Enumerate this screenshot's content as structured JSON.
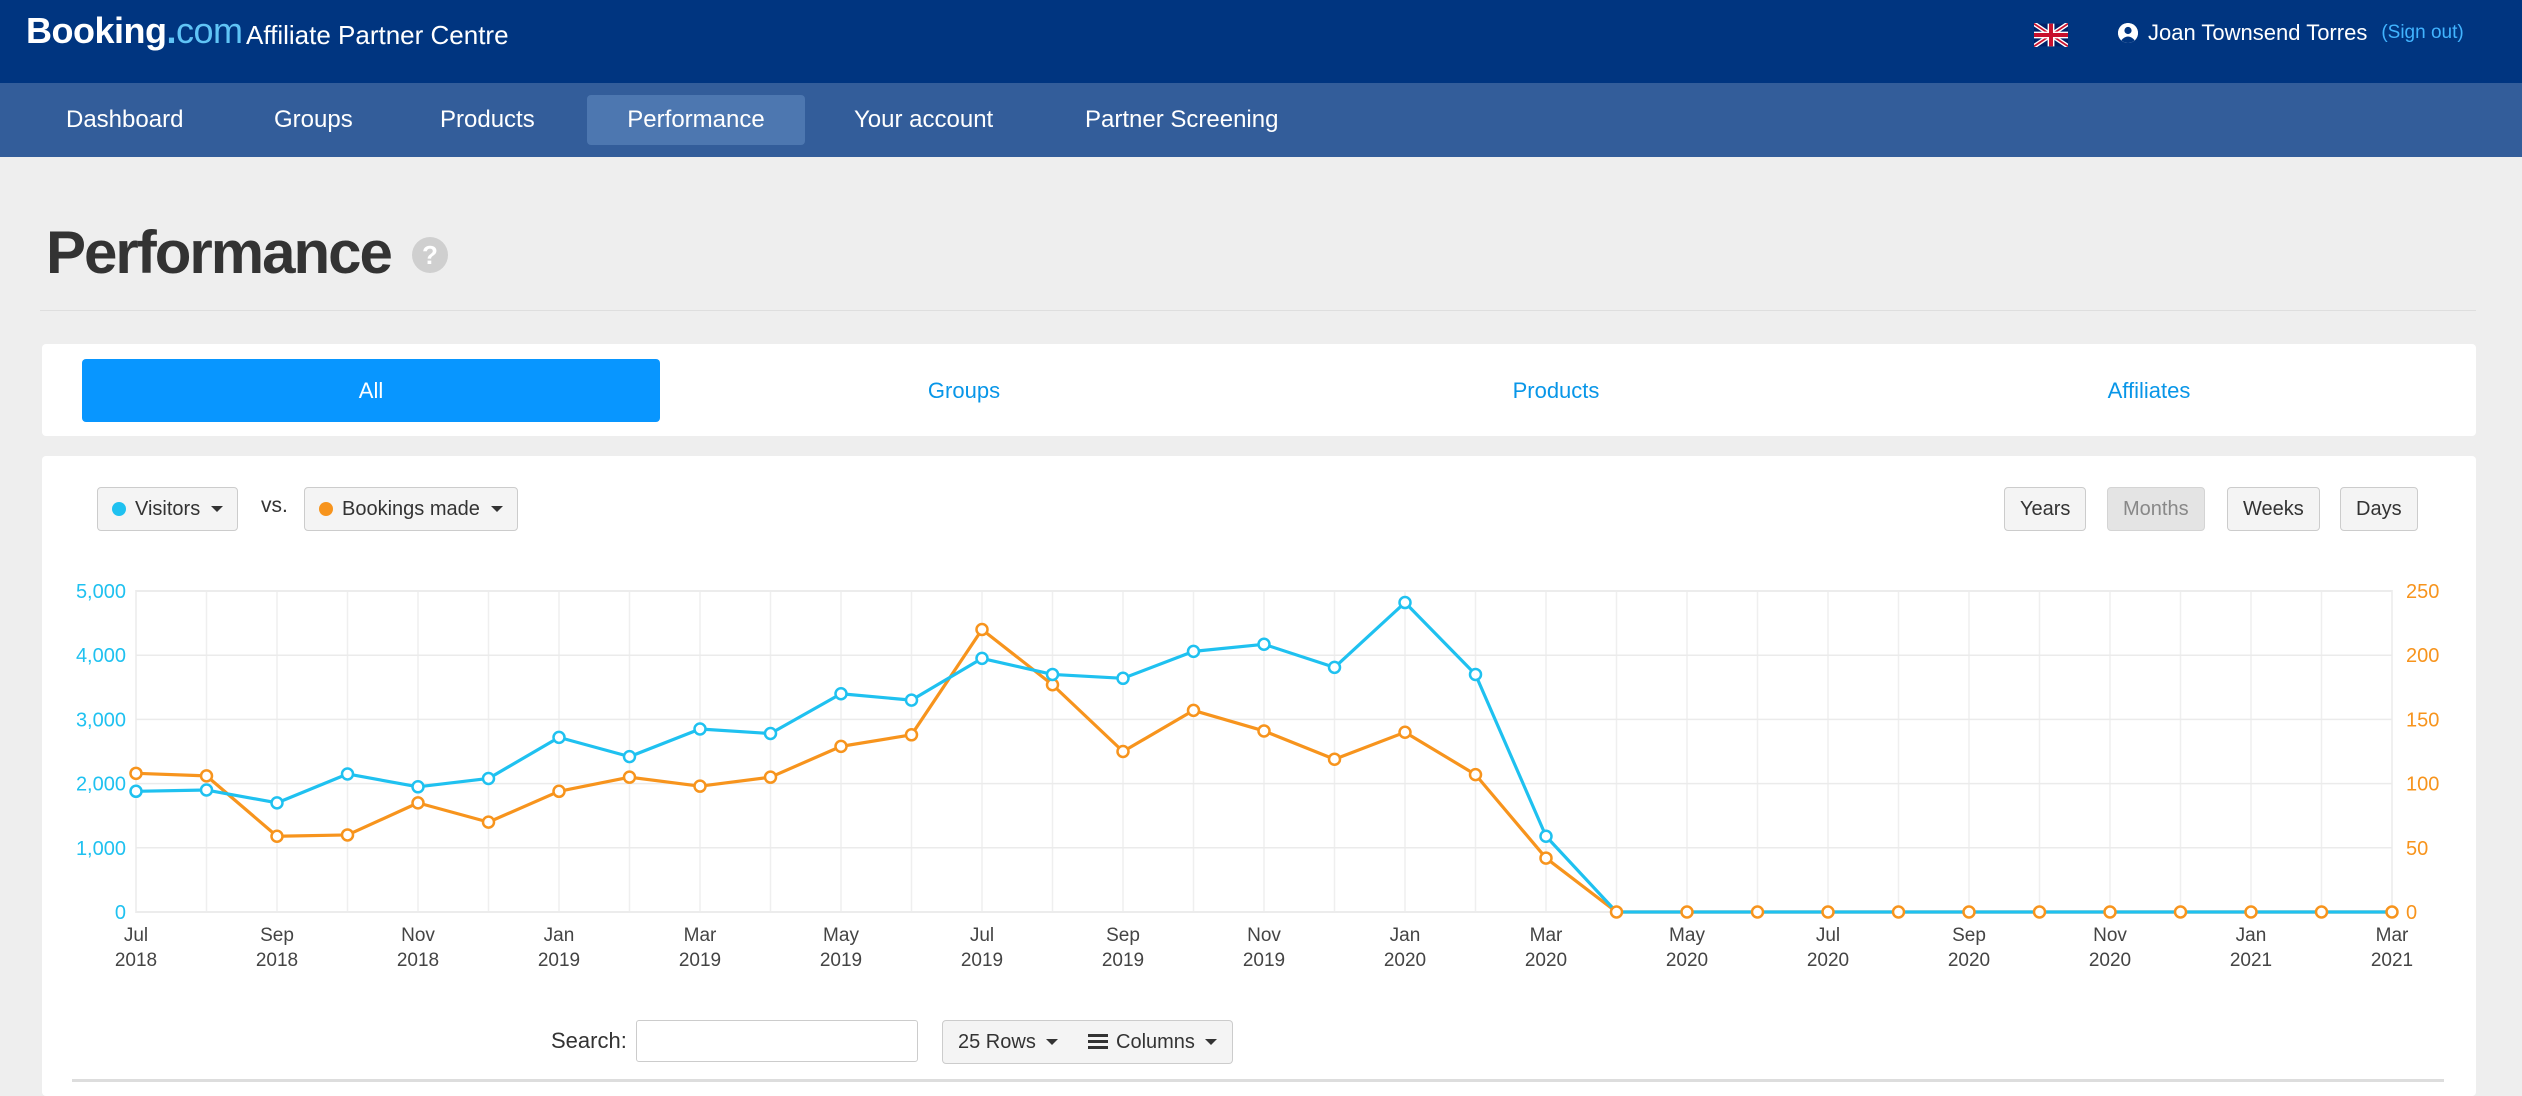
{
  "header": {
    "brand_main": "Booking",
    "brand_dot": ".",
    "brand_suffix": "com",
    "subtitle": "Affiliate Partner Centre",
    "flag_icon": "uk-flag-icon",
    "user_name": "Joan Townsend Torres",
    "sign_out": "(Sign out)"
  },
  "nav": {
    "items": [
      {
        "label": "Dashboard"
      },
      {
        "label": "Groups"
      },
      {
        "label": "Products"
      },
      {
        "label": "Performance"
      },
      {
        "label": "Your account"
      },
      {
        "label": "Partner Screening"
      }
    ],
    "active": "Performance"
  },
  "page": {
    "title": "Performance",
    "help": "?"
  },
  "tabs": {
    "items": [
      {
        "label": "All"
      },
      {
        "label": "Groups"
      },
      {
        "label": "Products"
      },
      {
        "label": "Affiliates"
      }
    ],
    "active": "All"
  },
  "controls": {
    "metric_left": "Visitors",
    "vs": "vs.",
    "metric_right": "Bookings made",
    "periods": [
      {
        "label": "Years"
      },
      {
        "label": "Months"
      },
      {
        "label": "Weeks"
      },
      {
        "label": "Days"
      }
    ],
    "active_period": "Months"
  },
  "colors": {
    "visitors": "#1fc1f0",
    "bookings": "#f7941d",
    "brand": "#003580",
    "nav": "#335d9a",
    "tab_active": "#0896ff"
  },
  "table_controls": {
    "search_label": "Search:",
    "search_value": "",
    "rows_button": "25 Rows",
    "columns_button": "Columns"
  },
  "chart_data": {
    "type": "line",
    "x": [
      "2018-07",
      "2018-08",
      "2018-09",
      "2018-10",
      "2018-11",
      "2018-12",
      "2019-01",
      "2019-02",
      "2019-03",
      "2019-04",
      "2019-05",
      "2019-06",
      "2019-07",
      "2019-08",
      "2019-09",
      "2019-10",
      "2019-11",
      "2019-12",
      "2020-01",
      "2020-02",
      "2020-03",
      "2020-04",
      "2020-05",
      "2020-06",
      "2020-07",
      "2020-08",
      "2020-09",
      "2020-10",
      "2020-11",
      "2020-12",
      "2021-01",
      "2021-02",
      "2021-03"
    ],
    "tick_labels": [
      {
        "month": "Jul",
        "year": "2018"
      },
      {
        "month": "Sep",
        "year": "2018"
      },
      {
        "month": "Nov",
        "year": "2018"
      },
      {
        "month": "Jan",
        "year": "2019"
      },
      {
        "month": "Mar",
        "year": "2019"
      },
      {
        "month": "May",
        "year": "2019"
      },
      {
        "month": "Jul",
        "year": "2019"
      },
      {
        "month": "Sep",
        "year": "2019"
      },
      {
        "month": "Nov",
        "year": "2019"
      },
      {
        "month": "Jan",
        "year": "2020"
      },
      {
        "month": "Mar",
        "year": "2020"
      },
      {
        "month": "May",
        "year": "2020"
      },
      {
        "month": "Jul",
        "year": "2020"
      },
      {
        "month": "Sep",
        "year": "2020"
      },
      {
        "month": "Nov",
        "year": "2020"
      },
      {
        "month": "Jan",
        "year": "2021"
      },
      {
        "month": "Mar",
        "year": "2021"
      }
    ],
    "series": [
      {
        "name": "Visitors",
        "axis": "left",
        "values": [
          1880,
          1900,
          1700,
          2150,
          1950,
          2080,
          2720,
          2420,
          2850,
          2780,
          3400,
          3300,
          3950,
          3700,
          3640,
          4060,
          4170,
          3810,
          4820,
          3700,
          1180,
          0,
          0,
          0,
          0,
          0,
          0,
          0,
          0,
          0,
          0,
          0,
          0
        ]
      },
      {
        "name": "Bookings made",
        "axis": "right",
        "values": [
          108,
          106,
          59,
          60,
          85,
          70,
          94,
          105,
          98,
          105,
          129,
          138,
          220,
          177,
          125,
          157,
          141,
          119,
          140,
          107,
          42,
          0,
          0,
          0,
          0,
          0,
          0,
          0,
          0,
          0,
          0,
          0,
          0
        ]
      }
    ],
    "y_left": {
      "min": 0,
      "max": 5000,
      "ticks": [
        "0",
        "1,000",
        "2,000",
        "3,000",
        "4,000",
        "5,000"
      ]
    },
    "y_right": {
      "min": 0,
      "max": 250,
      "ticks": [
        "0",
        "50",
        "100",
        "150",
        "200",
        "250"
      ]
    },
    "grid": true
  }
}
